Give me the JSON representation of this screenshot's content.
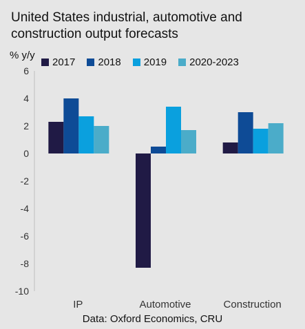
{
  "chart_data": {
    "type": "bar",
    "title": "United States industrial, automotive and construction output forecasts",
    "ylabel": "% y/y",
    "source": "Data: Oxford Economics, CRU",
    "categories": [
      "IP",
      "Automotive",
      "Construction"
    ],
    "ylim": [
      -10,
      6
    ],
    "yticks": [
      6,
      4,
      2,
      0,
      -2,
      -4,
      -6,
      -8,
      -10
    ],
    "legend_position": "top",
    "series": [
      {
        "name": "2017",
        "color": "#201a45",
        "values": [
          2.3,
          -8.3,
          0.8
        ]
      },
      {
        "name": "2018",
        "color": "#0e4b96",
        "values": [
          4.0,
          0.5,
          3.0
        ]
      },
      {
        "name": "2019",
        "color": "#0aa0de",
        "values": [
          2.7,
          3.4,
          1.8
        ]
      },
      {
        "name": "2020-2023",
        "color": "#4bacc9",
        "values": [
          2.0,
          1.7,
          2.2
        ]
      }
    ]
  }
}
